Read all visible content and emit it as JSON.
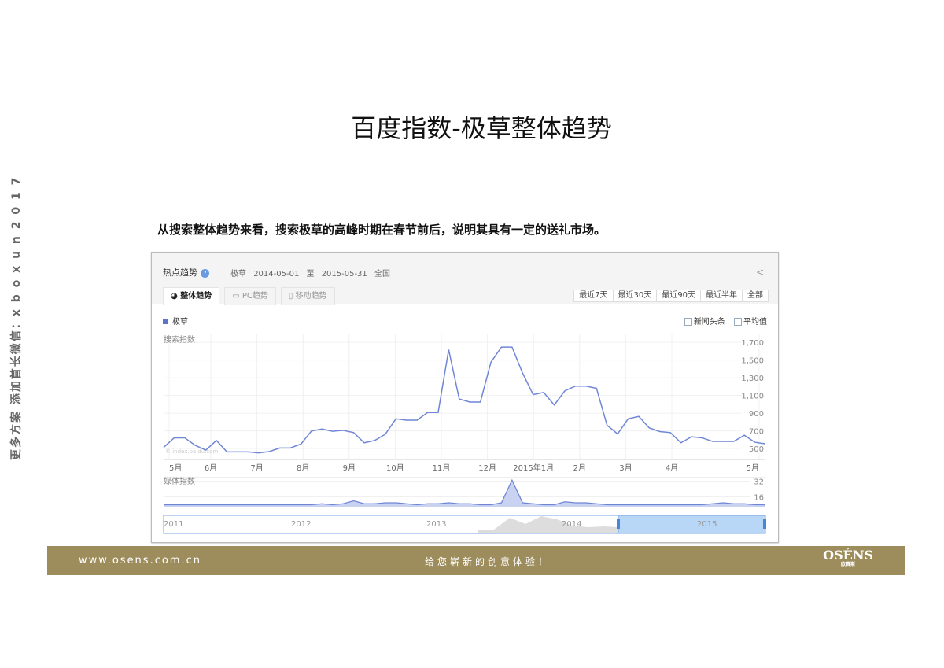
{
  "slide": {
    "title": "百度指数-极草整体趋势",
    "subtitle": "从搜索整体趋势来看，搜索极草的高峰时期在春节前后，说明其具有一定的送礼市场。",
    "side_text": "更多方案 添加首长微信：x b o x u n 2 0 1 7"
  },
  "panel": {
    "title": "热点趋势",
    "help_icon": "question-icon",
    "keyword": "极草",
    "date_range": "2014-05-01 至 2015-05-31",
    "region": "全国",
    "share_icon": "share-icon",
    "tabs": [
      {
        "label": "整体趋势",
        "icon": "pie-icon",
        "active": true
      },
      {
        "label": "PC趋势",
        "icon": "monitor-icon",
        "active": false
      },
      {
        "label": "移动趋势",
        "icon": "phone-icon",
        "active": false
      }
    ],
    "ranges": [
      "最近7天",
      "最近30天",
      "最近90天",
      "最近半年",
      "全部"
    ],
    "legend": "极草",
    "options": [
      "新闻头条",
      "平均值"
    ],
    "watermark": "© index.baidu.com"
  },
  "chart_data": [
    {
      "type": "line",
      "title": "",
      "ylabel": "搜索指数",
      "x_range": [
        "2014-05-01",
        "2015-05-31"
      ],
      "x_tick_labels": [
        "5月",
        "6月",
        "7月",
        "8月",
        "9月",
        "10月",
        "11月",
        "12月",
        "2015年1月",
        "2月",
        "3月",
        "4月",
        "5月"
      ],
      "y_ticks": [
        500,
        700,
        900,
        1100,
        1300,
        1500,
        1700
      ],
      "y_tick_labels": [
        "500",
        "700",
        "900",
        "1,100",
        "1,300",
        "1,500",
        "1,700"
      ],
      "ylim": [
        376,
        1790
      ],
      "grid": true,
      "color": "#6f86d6",
      "series": [
        {
          "name": "极草",
          "values": [
            512,
            621,
            621,
            535,
            482,
            591,
            462,
            462,
            462,
            450,
            465,
            506,
            506,
            550,
            698,
            721,
            695,
            706,
            680,
            565,
            591,
            662,
            836,
            821,
            821,
            907,
            907,
            1617,
            1060,
            1025,
            1025,
            1476,
            1647,
            1647,
            1352,
            1110,
            1134,
            992,
            1152,
            1205,
            1205,
            1181,
            763,
            665,
            836,
            863,
            733,
            692,
            680,
            565,
            633,
            621,
            580,
            580,
            580,
            650,
            571,
            553
          ]
        }
      ]
    },
    {
      "type": "area",
      "title": "",
      "ylabel": "媒体指数",
      "y_ticks": [
        16,
        32
      ],
      "y_tick_labels": [
        "16",
        "32"
      ],
      "ylim": [
        6,
        34
      ],
      "grid": true,
      "color": "#6f86d6",
      "series": [
        {
          "values": [
            8,
            8,
            8,
            8,
            8,
            8,
            8,
            8,
            8,
            8,
            8,
            8,
            8,
            8,
            8,
            9,
            8,
            9,
            12,
            9,
            9,
            10,
            10,
            9,
            8,
            9,
            9,
            10,
            9,
            9,
            8,
            8,
            10,
            33,
            10,
            9,
            8,
            8,
            11,
            10,
            10,
            9,
            8,
            8,
            8,
            8,
            8,
            8,
            8,
            8,
            8,
            8,
            9,
            10,
            9,
            9,
            8,
            8
          ]
        }
      ]
    },
    {
      "type": "area",
      "title": "",
      "x_tick_labels": [
        "2011",
        "2012",
        "2013",
        "2014",
        "2015"
      ],
      "selection": [
        "2014-05-01",
        "2015-05-31"
      ]
    }
  ],
  "footer": {
    "url": "www.osens.com.cn",
    "slogan": "给您崭新的创意体验！",
    "logo": "OSÉNS",
    "logo_sub": "欧赛斯"
  }
}
